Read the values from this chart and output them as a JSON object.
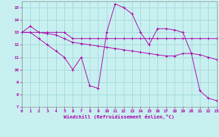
{
  "xlabel": "Windchill (Refroidissement éolien,°C)",
  "bg_color": "#c8f0f0",
  "grid_color": "#a0d8d8",
  "line_color": "#aa00aa",
  "xlim": [
    0,
    23
  ],
  "ylim": [
    7,
    15.5
  ],
  "xticks": [
    0,
    1,
    2,
    3,
    4,
    5,
    6,
    7,
    8,
    9,
    10,
    11,
    12,
    13,
    14,
    15,
    16,
    17,
    18,
    19,
    20,
    21,
    22,
    23
  ],
  "yticks": [
    7,
    8,
    9,
    10,
    11,
    12,
    13,
    14,
    15
  ],
  "line1_x": [
    0,
    1,
    2,
    3,
    4,
    5,
    6,
    7,
    8,
    9,
    10,
    11,
    12,
    13,
    14,
    15,
    16,
    17,
    18,
    19,
    20,
    21,
    22,
    23
  ],
  "line1_y": [
    13.0,
    13.5,
    13.0,
    13.0,
    13.0,
    13.0,
    12.5,
    12.5,
    12.5,
    12.5,
    12.5,
    12.5,
    12.5,
    12.5,
    12.5,
    12.5,
    12.5,
    12.5,
    12.5,
    12.5,
    12.5,
    12.5,
    12.5,
    12.5
  ],
  "line2_x": [
    0,
    1,
    2,
    3,
    4,
    5,
    6,
    7,
    8,
    9,
    10,
    11,
    12,
    13,
    14,
    15,
    16,
    17,
    18,
    19,
    20,
    21,
    22,
    23
  ],
  "line2_y": [
    13.0,
    13.0,
    13.0,
    12.9,
    12.8,
    12.5,
    12.2,
    12.1,
    12.0,
    11.9,
    11.8,
    11.7,
    11.6,
    11.5,
    11.4,
    11.3,
    11.2,
    11.1,
    11.1,
    11.3,
    11.3,
    11.2,
    11.0,
    10.8
  ],
  "line3_x": [
    0,
    1,
    2,
    3,
    4,
    5,
    6,
    7,
    8,
    9,
    10,
    11,
    12,
    13,
    14,
    15,
    16,
    17,
    18,
    19,
    20,
    21,
    22,
    23
  ],
  "line3_y": [
    13.0,
    13.0,
    12.5,
    12.0,
    11.5,
    11.0,
    10.0,
    11.0,
    8.7,
    8.5,
    13.0,
    15.3,
    15.0,
    14.5,
    13.0,
    12.0,
    13.3,
    13.3,
    13.2,
    13.0,
    11.3,
    8.3,
    7.7,
    7.5
  ]
}
